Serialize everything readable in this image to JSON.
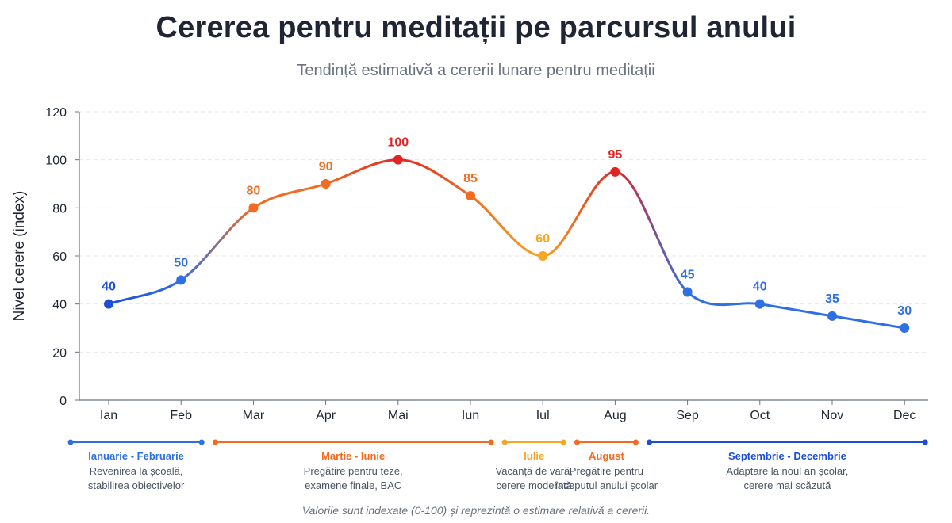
{
  "title": "Cererea pentru meditații pe parcursul anului",
  "subtitle": "Tendință estimativă a cererii lunare pentru meditații",
  "footnote": "Valorile sunt indexate (0-100) și reprezintă o estimare relativă a cererii.",
  "colors": {
    "blue": "#2f6fe4",
    "blue_dark": "#1d4ed8",
    "orange": "#f26b21",
    "orange_light": "#f5a623",
    "red": "#e02424",
    "grid": "#e5e7eb",
    "axis": "#6b7280"
  },
  "chart_data": {
    "type": "line",
    "title": "Cererea pentru meditații pe parcursul anului",
    "subtitle": "Tendință estimativă a cererii lunare pentru meditații",
    "xlabel": "",
    "ylabel": "Nivel cerere (index)",
    "ylim": [
      0,
      120
    ],
    "yticks": [
      0,
      20,
      40,
      60,
      80,
      100,
      120
    ],
    "grid": true,
    "categories": [
      "Ian",
      "Feb",
      "Mar",
      "Apr",
      "Mai",
      "Iun",
      "Iul",
      "Aug",
      "Sep",
      "Oct",
      "Nov",
      "Dec"
    ],
    "values": [
      40,
      50,
      80,
      90,
      100,
      85,
      60,
      95,
      45,
      40,
      35,
      30
    ],
    "point_colors": [
      "#1d4ed8",
      "#2f6fe4",
      "#f26b21",
      "#f26b21",
      "#e02424",
      "#f26b21",
      "#f5a623",
      "#e02424",
      "#2f6fe4",
      "#2f6fe4",
      "#2f6fe4",
      "#2f6fe4"
    ],
    "periods": [
      {
        "name": "Ianuarie - Februarie",
        "desc": [
          "Revenirea la școală,",
          "stabilirea obiectivelor"
        ],
        "from": 0,
        "to": 1,
        "color": "#2f6fe4"
      },
      {
        "name": "Martie - Iunie",
        "desc": [
          "Pregătire pentru teze,",
          "examene finale, BAC"
        ],
        "from": 2,
        "to": 5,
        "color": "#f26b21"
      },
      {
        "name": "Iulie",
        "desc": [
          "Vacanță de vară,",
          "cerere moderată"
        ],
        "from": 6,
        "to": 6,
        "color": "#f5a623"
      },
      {
        "name": "August",
        "desc": [
          "Pregătire pentru",
          "începutul anului școlar"
        ],
        "from": 7,
        "to": 7,
        "color": "#f26b21"
      },
      {
        "name": "Septembrie - Decembrie",
        "desc": [
          "Adaptare la noul an școlar,",
          "cerere mai scăzută"
        ],
        "from": 8,
        "to": 11,
        "color": "#1d4ed8"
      }
    ]
  }
}
